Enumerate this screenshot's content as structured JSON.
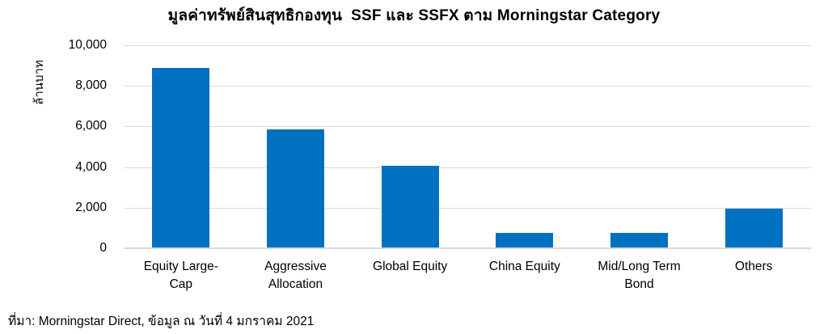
{
  "chart_data": {
    "type": "bar",
    "title": "มูลค่าทรัพย์สินสุทธิกองทุน  SSF และ SSFX ตาม Morningstar Category",
    "xlabel": "",
    "ylabel": "ล้านบาท",
    "ylim": [
      0,
      10000
    ],
    "yticks": [
      0,
      2000,
      4000,
      6000,
      8000,
      10000
    ],
    "ytick_labels": [
      "0",
      "2,000",
      "4,000",
      "6,000",
      "8,000",
      "10,000"
    ],
    "grid": "horizontal",
    "legend": "none",
    "categories": [
      "Equity Large-Cap",
      "Aggressive Allocation",
      "Global Equity",
      "China Equity",
      "Mid/Long Term Bond",
      "Others"
    ],
    "category_label_lines": [
      [
        "Equity Large-",
        "Cap"
      ],
      [
        "Aggressive",
        "Allocation"
      ],
      [
        "Global Equity"
      ],
      [
        "China Equity"
      ],
      [
        "Mid/Long Term",
        "Bond"
      ],
      [
        "Others"
      ]
    ],
    "values": [
      8900,
      5850,
      4080,
      740,
      740,
      1950
    ],
    "source": "ที่มา: Morningstar Direct, ข้อมูล ณ วันที่ 4 มกราคม 2021"
  },
  "colors": {
    "bar": "#0070C0",
    "gridline": "#D9D9D9",
    "axis_line": "#D9D9D9",
    "text": "#000000",
    "background": "#FFFFFF"
  }
}
